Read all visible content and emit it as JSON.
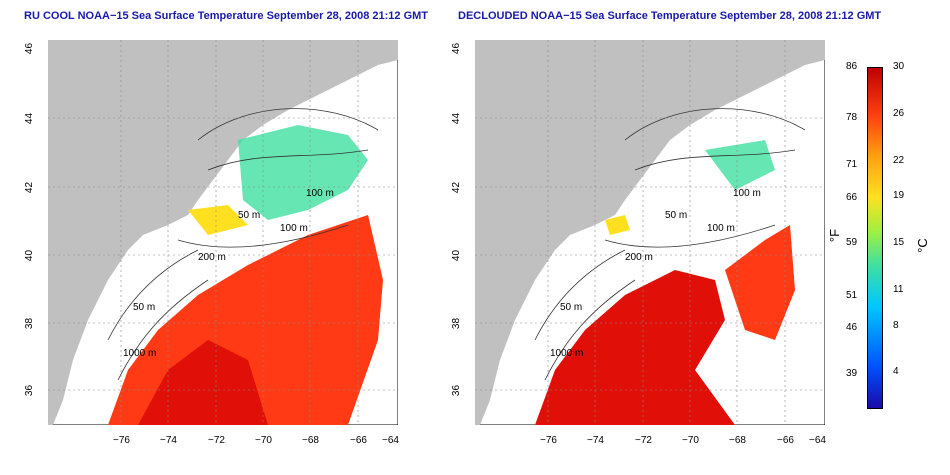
{
  "titles": {
    "left": "RU COOL NOAA−15 Sea Surface Temperature September 28, 2008 21:12 GMT",
    "right": "DECLOUDED NOAA−15 Sea Surface Temperature September 28, 2008 21:12 GMT"
  },
  "axes": {
    "lon_ticks": [
      "−76",
      "−74",
      "−72",
      "−70",
      "−68",
      "−66",
      "−64"
    ],
    "lat_ticks": [
      "36",
      "38",
      "40",
      "42",
      "44",
      "46"
    ]
  },
  "contour_labels": {
    "c1": "100 m",
    "c2": "100 m",
    "c3": "50 m",
    "c4": "200 m",
    "c5": "50 m",
    "c6": "1000 m"
  },
  "colorbar": {
    "fahrenheit": [
      "86",
      "78",
      "71",
      "66",
      "59",
      "51",
      "46",
      "39"
    ],
    "celsius": [
      "30",
      "26",
      "22",
      "19",
      "15",
      "11",
      "8",
      "4"
    ],
    "unit_f": "°F",
    "unit_c": "°C"
  },
  "colors": {
    "land": "#c0c0c0",
    "warm": "#ff3a14",
    "hot": "#e01008",
    "cool": "#40e0a0",
    "yellow": "#ffe020",
    "title": "#1a1aa8"
  }
}
